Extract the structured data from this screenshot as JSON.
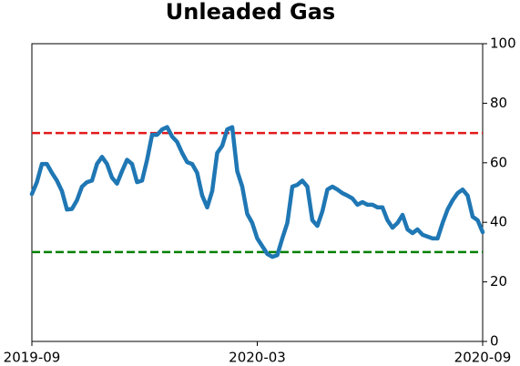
{
  "chart_data": {
    "type": "line",
    "title": "Unleaded Gas",
    "series": [
      {
        "name": "Unleaded Gas",
        "color": "#1f77b4",
        "values": [
          49.5,
          53.5,
          59.6,
          59.6,
          56.6,
          54,
          50.5,
          44.3,
          44.5,
          47.4,
          52,
          53.5,
          54,
          59.6,
          62,
          59.6,
          55,
          53,
          57.2,
          61,
          59.6,
          53.5,
          54,
          61,
          69.4,
          69.4,
          71.2,
          72,
          68.8,
          67,
          63.3,
          60.2,
          59.6,
          56.6,
          49,
          45,
          50.5,
          63.3,
          65.7,
          71.2,
          72,
          57.2,
          52,
          42.8,
          39.8,
          34.6,
          32,
          29.4,
          28.4,
          29,
          34.6,
          39.8,
          52,
          52.6,
          54,
          52,
          40.7,
          38.8,
          43.7,
          51,
          52,
          51,
          49.8,
          49,
          48,
          45.9,
          46.8,
          45.9,
          45.9,
          45,
          45,
          40.7,
          38.2,
          39.8,
          42.5,
          37.6,
          36.4,
          37.6,
          35.8,
          35.2,
          34.6,
          34.6,
          39.8,
          44.3,
          47.4,
          49.8,
          51,
          49,
          41.9,
          40.7,
          36.7
        ]
      }
    ],
    "xlim": [
      "2019-09",
      "2020-09"
    ],
    "xticks": [
      "2019-09",
      "2020-03",
      "2020-09"
    ],
    "ylim": [
      0,
      100
    ],
    "yticks": [
      0,
      20,
      40,
      60,
      80,
      100
    ],
    "y_axis_side": "right",
    "hlines": [
      {
        "value": 70,
        "color": "#e31a1c"
      },
      {
        "value": 30,
        "color": "#008000"
      }
    ]
  }
}
